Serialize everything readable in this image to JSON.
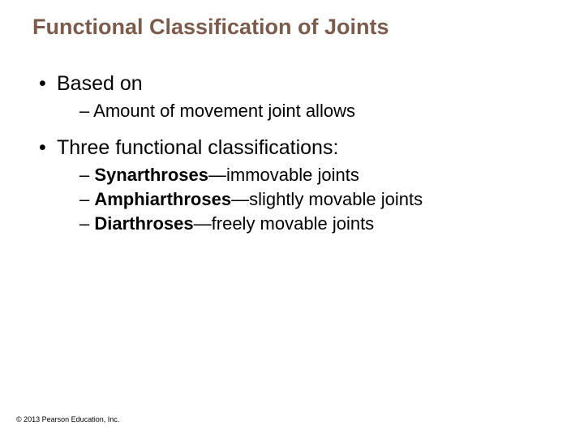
{
  "title": {
    "text": "Functional Classification of Joints",
    "color": "#7b5b4c",
    "fontsize": 27
  },
  "body": {
    "color": "#000000",
    "fontsize_l1": 25,
    "fontsize_l2": 22,
    "bullet_l1": "•",
    "bullet_l2": "–",
    "items": [
      {
        "text": "Based on",
        "children": [
          {
            "text": "Amount of movement joint allows"
          }
        ]
      },
      {
        "text": "Three functional classifications:",
        "children": [
          {
            "bold": "Synarthroses",
            "rest": "—immovable joints"
          },
          {
            "bold": "Amphiarthroses",
            "rest": "—slightly movable joints"
          },
          {
            "bold": "Diarthroses",
            "rest": "—freely movable joints"
          }
        ]
      }
    ]
  },
  "copyright": {
    "text": "© 2013 Pearson Education, Inc.",
    "color": "#000000",
    "fontsize": 9
  }
}
